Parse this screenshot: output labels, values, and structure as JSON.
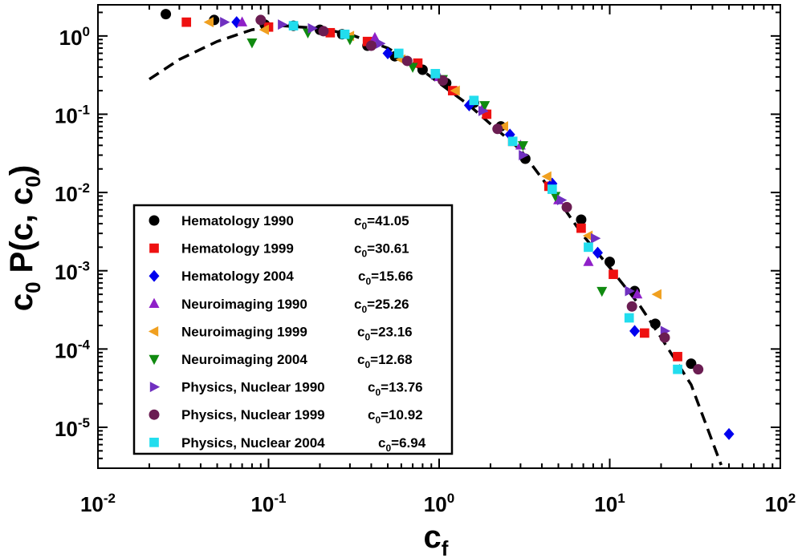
{
  "chart_data": {
    "type": "scatter",
    "x_scale": "log",
    "y_scale": "log",
    "xlim": [
      0.01,
      100
    ],
    "ylim": [
      3e-06,
      2.5
    ],
    "xlabel": {
      "main": "c",
      "sub": "f"
    },
    "ylabel": {
      "parts": [
        "c",
        "0",
        "  P(c, c",
        "0",
        ")"
      ]
    },
    "x_ticks": [
      {
        "value": 0.01,
        "base": "10",
        "exp": "-2"
      },
      {
        "value": 0.1,
        "base": "10",
        "exp": "-1"
      },
      {
        "value": 1,
        "base": "10",
        "exp": "0"
      },
      {
        "value": 10,
        "base": "10",
        "exp": "1"
      },
      {
        "value": 100,
        "base": "10",
        "exp": "2"
      }
    ],
    "y_ticks": [
      {
        "value": 1e-05,
        "base": "10",
        "exp": "-5"
      },
      {
        "value": 0.0001,
        "base": "10",
        "exp": "-4"
      },
      {
        "value": 0.001,
        "base": "10",
        "exp": "-3"
      },
      {
        "value": 0.01,
        "base": "10",
        "exp": "-2"
      },
      {
        "value": 0.1,
        "base": "10",
        "exp": "-1"
      },
      {
        "value": 1,
        "base": "10",
        "exp": "0"
      }
    ],
    "fit_curve": {
      "style": "dashed",
      "color": "#000000",
      "points": [
        [
          0.02,
          0.28
        ],
        [
          0.03,
          0.5
        ],
        [
          0.05,
          0.85
        ],
        [
          0.08,
          1.2
        ],
        [
          0.12,
          1.35
        ],
        [
          0.2,
          1.25
        ],
        [
          0.3,
          1.05
        ],
        [
          0.5,
          0.7
        ],
        [
          0.7,
          0.45
        ],
        [
          1.0,
          0.25
        ],
        [
          1.5,
          0.13
        ],
        [
          2.0,
          0.075
        ],
        [
          3.0,
          0.035
        ],
        [
          5.0,
          0.008
        ],
        [
          7.0,
          0.0028
        ],
        [
          10.0,
          0.0011
        ],
        [
          15.0,
          0.00036
        ],
        [
          20.0,
          0.00014
        ],
        [
          30.0,
          3.5e-05
        ],
        [
          45.0,
          3.3e-06
        ]
      ]
    },
    "series": [
      {
        "name": "Hematology 1990",
        "c0": "41.05",
        "marker": "circle",
        "color": "#000000",
        "points": [
          [
            0.025,
            1.9
          ],
          [
            0.048,
            1.6
          ],
          [
            0.095,
            1.4
          ],
          [
            0.14,
            1.35
          ],
          [
            0.2,
            1.2
          ],
          [
            0.27,
            1.05
          ],
          [
            0.38,
            0.75
          ],
          [
            0.55,
            0.55
          ],
          [
            0.8,
            0.37
          ],
          [
            1.1,
            0.25
          ],
          [
            1.6,
            0.14
          ],
          [
            2.3,
            0.07
          ],
          [
            3.2,
            0.027
          ],
          [
            4.5,
            0.012
          ],
          [
            6.8,
            0.0045
          ],
          [
            10,
            0.0013
          ],
          [
            14,
            0.00055
          ],
          [
            18.5,
            0.00021
          ],
          [
            30,
            6.5e-05
          ]
        ]
      },
      {
        "name": "Hematology 1999",
        "c0": "30.61",
        "marker": "square",
        "color": "#ee1111",
        "points": [
          [
            0.033,
            1.5
          ],
          [
            0.1,
            1.3
          ],
          [
            0.23,
            1.1
          ],
          [
            0.38,
            0.85
          ],
          [
            0.75,
            0.45
          ],
          [
            1.2,
            0.2
          ],
          [
            1.9,
            0.1
          ],
          [
            2.7,
            0.045
          ],
          [
            4.4,
            0.012
          ],
          [
            6.8,
            0.0035
          ],
          [
            10.5,
            0.0009
          ],
          [
            16,
            0.00016
          ],
          [
            25,
            8e-05
          ]
        ]
      },
      {
        "name": "Hematology 2004",
        "c0": "15.66",
        "marker": "diamond",
        "color": "#0000ee",
        "points": [
          [
            0.065,
            1.5
          ],
          [
            0.5,
            0.6
          ],
          [
            1.5,
            0.13
          ],
          [
            2.6,
            0.055
          ],
          [
            4.6,
            0.013
          ],
          [
            8.5,
            0.0017
          ],
          [
            14,
            0.00017
          ],
          [
            50,
            8.2e-06
          ]
        ]
      },
      {
        "name": "Neuroimaging 1990",
        "c0": "25.26",
        "marker": "triangle-up",
        "color": "#8f20c8",
        "points": [
          [
            0.07,
            1.5
          ],
          [
            0.42,
            0.95
          ],
          [
            1.0,
            0.3
          ],
          [
            1.8,
            0.12
          ],
          [
            3.0,
            0.04
          ],
          [
            5.0,
            0.008
          ],
          [
            7.5,
            0.0013
          ],
          [
            14.5,
            0.0005
          ]
        ]
      },
      {
        "name": "Neuroimaging 1999",
        "c0": "23.16",
        "marker": "triangle-left",
        "color": "#f0a020",
        "points": [
          [
            0.045,
            1.5
          ],
          [
            0.095,
            1.2
          ],
          [
            0.3,
            1.0
          ],
          [
            0.6,
            0.5
          ],
          [
            1.25,
            0.2
          ],
          [
            2.4,
            0.07
          ],
          [
            4.3,
            0.016
          ],
          [
            7.5,
            0.0028
          ],
          [
            19,
            0.0005
          ]
        ]
      },
      {
        "name": "Neuroimaging 2004",
        "c0": "12.68",
        "marker": "triangle-down",
        "color": "#108a10",
        "points": [
          [
            0.08,
            0.82
          ],
          [
            0.17,
            1.1
          ],
          [
            0.3,
            0.9
          ],
          [
            0.7,
            0.4
          ],
          [
            1.05,
            0.28
          ],
          [
            1.85,
            0.13
          ],
          [
            3.1,
            0.04
          ],
          [
            4.8,
            0.009
          ],
          [
            9.0,
            0.00055
          ]
        ]
      },
      {
        "name": "Physics, Nuclear 1990",
        "c0": "13.76",
        "marker": "triangle-right",
        "color": "#7030c0",
        "points": [
          [
            0.055,
            1.5
          ],
          [
            0.12,
            1.4
          ],
          [
            0.18,
            1.25
          ],
          [
            0.45,
            0.8
          ],
          [
            0.95,
            0.32
          ],
          [
            1.8,
            0.11
          ],
          [
            3.1,
            0.03
          ],
          [
            5.2,
            0.008
          ],
          [
            8.2,
            0.0026
          ],
          [
            13,
            0.00055
          ],
          [
            21,
            0.00017
          ]
        ]
      },
      {
        "name": "Physics, Nuclear 1999",
        "c0": "10.92",
        "marker": "circle",
        "color": "#6b1d52",
        "points": [
          [
            0.09,
            1.6
          ],
          [
            0.21,
            1.15
          ],
          [
            0.4,
            0.75
          ],
          [
            0.65,
            0.48
          ],
          [
            1.05,
            0.27
          ],
          [
            2.2,
            0.065
          ],
          [
            5.6,
            0.0065
          ],
          [
            13.5,
            0.00035
          ],
          [
            21,
            0.00014
          ],
          [
            33,
            5.5e-05
          ]
        ]
      },
      {
        "name": "Physics, Nuclear 2004",
        "c0": "6.94",
        "marker": "square",
        "color": "#22ddee",
        "points": [
          [
            0.14,
            1.35
          ],
          [
            0.28,
            1.05
          ],
          [
            0.58,
            0.6
          ],
          [
            0.95,
            0.33
          ],
          [
            1.6,
            0.15
          ],
          [
            2.7,
            0.045
          ],
          [
            4.6,
            0.011
          ],
          [
            7.5,
            0.002
          ],
          [
            13,
            0.00025
          ],
          [
            25,
            5.5e-05
          ]
        ]
      }
    ]
  }
}
